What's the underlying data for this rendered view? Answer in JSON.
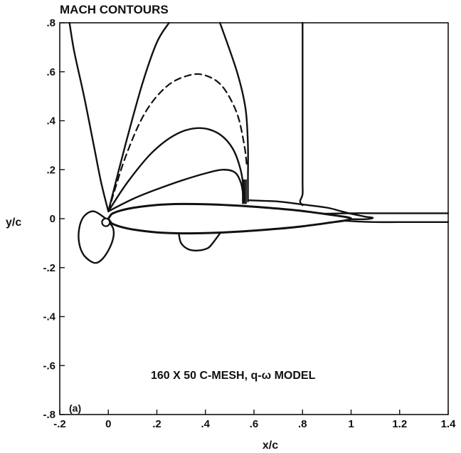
{
  "chart_data": {
    "type": "contour",
    "title": "MACH CONTOURS",
    "xlabel": "x/c",
    "ylabel": "y/c",
    "xlim": [
      -0.2,
      1.4
    ],
    "ylim": [
      -0.8,
      0.8
    ],
    "x_ticks": [
      -0.2,
      0,
      0.2,
      0.4,
      0.6,
      0.8,
      1,
      1.2,
      1.4
    ],
    "x_tick_labels": [
      "-.2",
      "0",
      ".2",
      ".4",
      ".6",
      ".8",
      "1",
      "1.2",
      "1.4"
    ],
    "y_ticks": [
      0.8,
      0.6,
      0.4,
      0.2,
      0,
      -0.2,
      -0.4,
      -0.6,
      -0.8
    ],
    "y_tick_labels": [
      ".8",
      ".6",
      ".4",
      ".2",
      "0",
      "-.2",
      "-.4",
      "-.6",
      "-.8"
    ],
    "grid": false,
    "annotation": "160 X 50 C-MESH, q-ω MODEL",
    "panel_label": "(a)",
    "contours": [
      {
        "style": "solid",
        "points": [
          [
            -0.16,
            0.8
          ],
          [
            -0.14,
            0.68
          ],
          [
            -0.1,
            0.5
          ],
          [
            -0.06,
            0.3
          ],
          [
            -0.03,
            0.15
          ],
          [
            0.0,
            0.03
          ]
        ]
      },
      {
        "style": "solid",
        "points": [
          [
            0.0,
            0.03
          ],
          [
            0.07,
            0.3
          ],
          [
            0.14,
            0.55
          ],
          [
            0.2,
            0.72
          ],
          [
            0.25,
            0.8
          ]
        ]
      },
      {
        "style": "solid",
        "points": [
          [
            0.46,
            0.8
          ],
          [
            0.53,
            0.6
          ],
          [
            0.565,
            0.45
          ],
          [
            0.575,
            0.3
          ],
          [
            0.575,
            0.15
          ],
          [
            0.575,
            0.07
          ]
        ]
      },
      {
        "style": "dashed",
        "points": [
          [
            0.0,
            0.03
          ],
          [
            0.07,
            0.25
          ],
          [
            0.15,
            0.43
          ],
          [
            0.24,
            0.54
          ],
          [
            0.33,
            0.585
          ],
          [
            0.4,
            0.585
          ],
          [
            0.47,
            0.54
          ],
          [
            0.53,
            0.43
          ],
          [
            0.56,
            0.3
          ],
          [
            0.57,
            0.22
          ]
        ]
      },
      {
        "style": "solid",
        "points": [
          [
            0.0,
            0.03
          ],
          [
            0.08,
            0.15
          ],
          [
            0.18,
            0.27
          ],
          [
            0.28,
            0.345
          ],
          [
            0.37,
            0.37
          ],
          [
            0.45,
            0.35
          ],
          [
            0.51,
            0.29
          ],
          [
            0.545,
            0.2
          ],
          [
            0.56,
            0.1
          ],
          [
            0.56,
            0.07
          ]
        ]
      },
      {
        "style": "solid",
        "points": [
          [
            0.0,
            0.03
          ],
          [
            0.1,
            0.08
          ],
          [
            0.2,
            0.12
          ],
          [
            0.3,
            0.155
          ],
          [
            0.4,
            0.185
          ],
          [
            0.47,
            0.2
          ],
          [
            0.52,
            0.19
          ],
          [
            0.545,
            0.15
          ],
          [
            0.555,
            0.1
          ],
          [
            0.555,
            0.07
          ]
        ]
      },
      {
        "style": "solid",
        "points": [
          [
            0.8,
            0.8
          ],
          [
            0.8,
            0.5
          ],
          [
            0.8,
            0.3
          ],
          [
            0.8,
            0.15
          ],
          [
            0.8,
            0.1
          ],
          [
            0.79,
            0.07
          ],
          [
            0.8,
            0.055
          ]
        ]
      },
      {
        "style": "solid",
        "points": [
          [
            -0.01,
            0.0
          ],
          [
            -0.06,
            0.03
          ],
          [
            -0.1,
            0.01
          ],
          [
            -0.12,
            -0.04
          ],
          [
            -0.12,
            -0.1
          ],
          [
            -0.1,
            -0.15
          ],
          [
            -0.06,
            -0.18
          ],
          [
            -0.03,
            -0.17
          ],
          [
            0.0,
            -0.13
          ],
          [
            0.02,
            -0.08
          ],
          [
            0.02,
            -0.04
          ],
          [
            0.0,
            -0.01
          ]
        ]
      },
      {
        "style": "solid",
        "points": [
          [
            0.29,
            -0.06
          ],
          [
            0.3,
            -0.1
          ],
          [
            0.33,
            -0.125
          ],
          [
            0.37,
            -0.13
          ],
          [
            0.41,
            -0.12
          ],
          [
            0.43,
            -0.1
          ],
          [
            0.46,
            -0.06
          ]
        ]
      },
      {
        "style": "solid",
        "points": [
          [
            0.58,
            0.075
          ],
          [
            0.7,
            0.07
          ],
          [
            0.8,
            0.058
          ],
          [
            0.9,
            0.045
          ],
          [
            0.96,
            0.03
          ],
          [
            1.0,
            0.02
          ],
          [
            1.06,
            0.008
          ],
          [
            1.09,
            0.003
          ],
          [
            1.06,
            -0.002
          ],
          [
            1.0,
            -0.002
          ]
        ]
      },
      {
        "style": "solid",
        "points": [
          [
            0.88,
            0.02
          ],
          [
            1.0,
            0.022
          ],
          [
            1.1,
            0.022
          ],
          [
            1.25,
            0.022
          ],
          [
            1.4,
            0.022
          ]
        ]
      },
      {
        "style": "solid",
        "points": [
          [
            0.88,
            -0.002
          ],
          [
            1.0,
            -0.01
          ],
          [
            1.1,
            -0.014
          ],
          [
            1.25,
            -0.014
          ],
          [
            1.4,
            -0.014
          ]
        ]
      }
    ],
    "airfoil": {
      "upper": [
        [
          0.0,
          0.0
        ],
        [
          0.0125,
          0.0178
        ],
        [
          0.025,
          0.0245
        ],
        [
          0.05,
          0.033
        ],
        [
          0.1,
          0.0438
        ],
        [
          0.2,
          0.056
        ],
        [
          0.3,
          0.06
        ],
        [
          0.4,
          0.059
        ],
        [
          0.5,
          0.055
        ],
        [
          0.6,
          0.049
        ],
        [
          0.7,
          0.041
        ],
        [
          0.8,
          0.031
        ],
        [
          0.9,
          0.018
        ],
        [
          1.0,
          0.0
        ]
      ],
      "lower": [
        [
          0.0,
          0.0
        ],
        [
          0.0125,
          -0.0178
        ],
        [
          0.025,
          -0.0245
        ],
        [
          0.05,
          -0.033
        ],
        [
          0.1,
          -0.0438
        ],
        [
          0.2,
          -0.056
        ],
        [
          0.3,
          -0.06
        ],
        [
          0.4,
          -0.059
        ],
        [
          0.5,
          -0.055
        ],
        [
          0.6,
          -0.049
        ],
        [
          0.7,
          -0.041
        ],
        [
          0.8,
          -0.031
        ],
        [
          0.9,
          -0.018
        ],
        [
          1.0,
          0.0
        ]
      ]
    },
    "stagnation_circle": {
      "x": -0.01,
      "y": -0.015,
      "r": 0.016
    }
  }
}
